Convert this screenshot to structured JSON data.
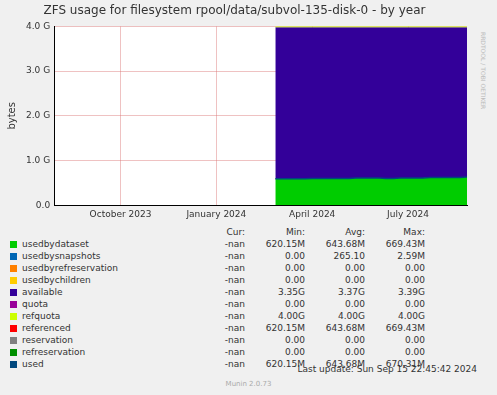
{
  "chart_data": {
    "type": "area",
    "title": "ZFS usage for filesystem rpool/data/subvol-135-disk-0 - by year",
    "y_label": "bytes",
    "categories": [
      null,
      null,
      null,
      null,
      null,
      null,
      null,
      null,
      null,
      "October 2023",
      null,
      null,
      null,
      null,
      null,
      null,
      null,
      null,
      null,
      null,
      null,
      null,
      "January 2024",
      null,
      null,
      null,
      null,
      null,
      null,
      null,
      null,
      null,
      null,
      null,
      null,
      "April 2024",
      null,
      null,
      null,
      null,
      null,
      null,
      null,
      null,
      null,
      null,
      null,
      null,
      "July 2024",
      null,
      null,
      null,
      null,
      null,
      null,
      null,
      null
    ],
    "series": [
      {
        "name": "usedbydataset",
        "color": "#00cc00",
        "type": "area",
        "values": [
          null,
          null,
          null,
          null,
          null,
          null,
          null,
          null,
          null,
          null,
          null,
          null,
          null,
          null,
          null,
          null,
          null,
          null,
          null,
          null,
          null,
          null,
          null,
          null,
          null,
          null,
          null,
          null,
          null,
          null,
          0.59,
          0.59,
          0.59,
          0.59,
          0.59,
          0.6,
          0.6,
          0.6,
          0.6,
          0.6,
          0.6,
          0.61,
          0.61,
          0.61,
          0.61,
          0.6,
          0.6,
          0.61,
          0.61,
          0.61,
          0.61,
          0.62,
          0.62,
          0.62,
          0.62,
          0.62,
          0.63
        ]
      },
      {
        "name": "available",
        "color": "#330099",
        "type": "area",
        "values": [
          null,
          null,
          null,
          null,
          null,
          null,
          null,
          null,
          null,
          null,
          null,
          null,
          null,
          null,
          null,
          null,
          null,
          null,
          null,
          null,
          null,
          null,
          null,
          null,
          null,
          null,
          null,
          null,
          null,
          null,
          3.39,
          3.39,
          3.39,
          3.39,
          3.39,
          3.38,
          3.38,
          3.38,
          3.38,
          3.38,
          3.38,
          3.37,
          3.37,
          3.37,
          3.37,
          3.38,
          3.38,
          3.37,
          3.37,
          3.37,
          3.37,
          3.36,
          3.36,
          3.36,
          3.36,
          3.36,
          3.35
        ]
      },
      {
        "name": "refquota",
        "color": "#ccff00",
        "type": "line",
        "values": [
          null,
          null,
          null,
          null,
          null,
          null,
          null,
          null,
          null,
          null,
          null,
          null,
          null,
          null,
          null,
          null,
          null,
          null,
          null,
          null,
          null,
          null,
          null,
          null,
          null,
          null,
          null,
          null,
          null,
          null,
          4.0,
          4.0,
          4.0,
          4.0,
          4.0,
          4.0,
          4.0,
          4.0,
          4.0,
          4.0,
          4.0,
          4.0,
          4.0,
          4.0,
          4.0,
          4.0,
          4.0,
          4.0,
          4.0,
          4.0,
          4.0,
          4.0,
          4.0,
          4.0,
          4.0,
          4.0,
          4.0
        ]
      },
      {
        "name": "used",
        "color": "#00487d",
        "type": "line",
        "values": [
          null,
          null,
          null,
          null,
          null,
          null,
          null,
          null,
          null,
          null,
          null,
          null,
          null,
          null,
          null,
          null,
          null,
          null,
          null,
          null,
          null,
          null,
          null,
          null,
          null,
          null,
          null,
          null,
          null,
          null,
          0.59,
          0.59,
          0.59,
          0.59,
          0.59,
          0.6,
          0.6,
          0.6,
          0.6,
          0.6,
          0.6,
          0.61,
          0.61,
          0.61,
          0.61,
          0.6,
          0.6,
          0.61,
          0.61,
          0.61,
          0.61,
          0.62,
          0.62,
          0.62,
          0.62,
          0.62,
          0.63
        ]
      }
    ],
    "stacked": true,
    "ylim": [
      0,
      4
    ],
    "yticks": [
      {
        "value": 0,
        "label": "0.0"
      },
      {
        "value": 1,
        "label": "1.0 G"
      },
      {
        "value": 2,
        "label": "2.0 G"
      },
      {
        "value": 3,
        "label": "3.0 G"
      },
      {
        "value": 4,
        "label": "4.0 G"
      }
    ],
    "grid": true,
    "legend": "bottom"
  },
  "legend_table": {
    "header": [
      "Cur:",
      "Min:",
      "Avg:",
      "Max:"
    ],
    "rows": [
      {
        "name": "usedbydataset",
        "color": "#00cc00",
        "cells": [
          "-nan",
          "620.15M",
          "643.68M",
          "669.43M"
        ]
      },
      {
        "name": "usedbysnapshots",
        "color": "#0066b3",
        "cells": [
          "-nan",
          "0.00",
          "265.10",
          "2.59M"
        ]
      },
      {
        "name": "usedbyrefreservation",
        "color": "#ff8000",
        "cells": [
          "-nan",
          "0.00",
          "0.00",
          "0.00"
        ]
      },
      {
        "name": "usedbychildren",
        "color": "#ffcc00",
        "cells": [
          "-nan",
          "0.00",
          "0.00",
          "0.00"
        ]
      },
      {
        "name": "available",
        "color": "#330099",
        "cells": [
          "-nan",
          "3.35G",
          "3.37G",
          "3.39G"
        ]
      },
      {
        "name": "quota",
        "color": "#990099",
        "cells": [
          "-nan",
          "0.00",
          "0.00",
          "0.00"
        ]
      },
      {
        "name": "refquota",
        "color": "#ccff00",
        "cells": [
          "-nan",
          "4.00G",
          "4.00G",
          "4.00G"
        ]
      },
      {
        "name": "referenced",
        "color": "#ff0000",
        "cells": [
          "-nan",
          "620.15M",
          "643.68M",
          "669.43M"
        ]
      },
      {
        "name": "reservation",
        "color": "#808080",
        "cells": [
          "-nan",
          "0.00",
          "0.00",
          "0.00"
        ]
      },
      {
        "name": "refreservation",
        "color": "#008f00",
        "cells": [
          "-nan",
          "0.00",
          "0.00",
          "0.00"
        ]
      },
      {
        "name": "used",
        "color": "#00487d",
        "cells": [
          "-nan",
          "620.15M",
          "643.68M",
          "670.31M"
        ]
      }
    ]
  },
  "footer": {
    "last_update": "Last update: Sun Sep 15 22:45:42 2024",
    "version": "Munin 2.0.73",
    "watermark": "RRDTOOL / TOBI OETIKER"
  }
}
